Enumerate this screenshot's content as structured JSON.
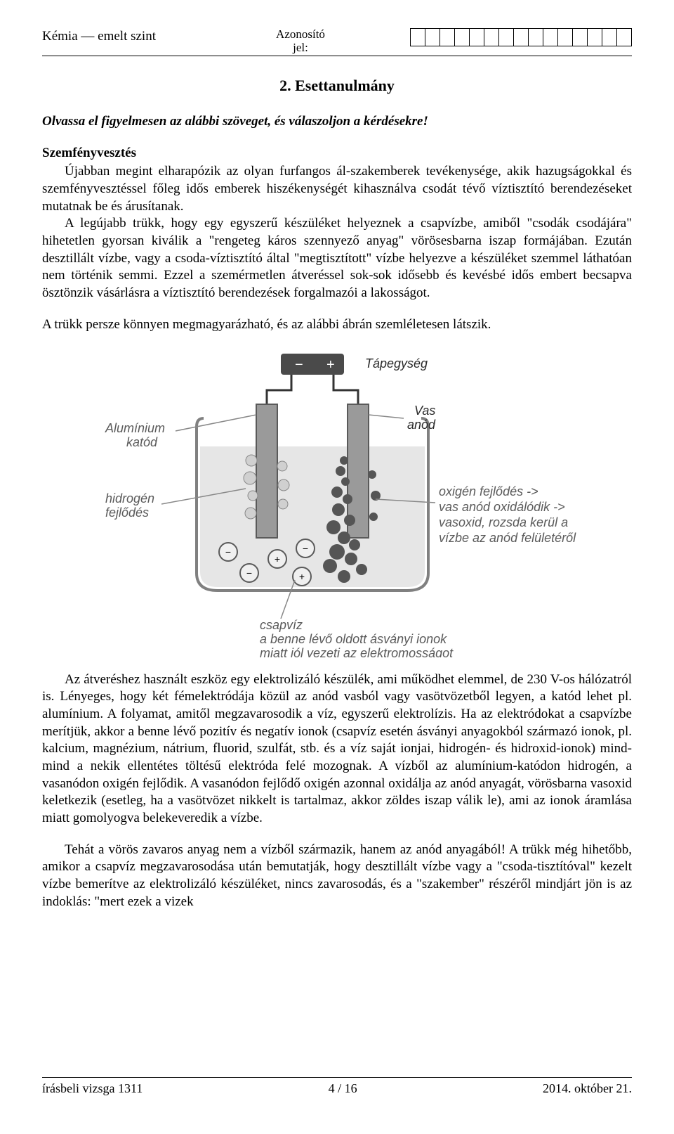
{
  "header": {
    "left": "Kémia — emelt szint",
    "mid1": "Azonosító",
    "mid2": "jel:",
    "idcell_count": 15
  },
  "section_title": "2. Esettanulmány",
  "intro": "Olvassa el figyelmesen az alábbi szöveget, és válaszoljon a kérdésekre!",
  "subhead": "Szemfényvesztés",
  "para1": "Újabban megint elharapózik az olyan furfangos ál-szakemberek tevékenysége, akik hazugságokkal és szemfényvesztéssel főleg idős emberek hiszékenységét kihasználva csodát tévő víztisztító berendezéseket mutatnak be és árusítanak.",
  "para2": "A legújabb trükk, hogy egy egyszerű készüléket helyeznek a csapvízbe, amiből \"csodák csodájára\" hihetetlen gyorsan kiválik a \"rengeteg káros szennyező anyag\" vörösesbarna iszap formájában. Ezután desztillált vízbe, vagy a csoda-víztisztító által \"megtisztított\" vízbe helyezve a készüléket szemmel láthatóan nem történik semmi. Ezzel a szemérmetlen átveréssel sok-sok idősebb és kevésbé idős embert becsapva ösztönzik vásárlásra a víztisztító berendezések forgalmazói a lakosságot.",
  "para3": "A trükk persze könnyen megmagyarázható, és az alábbi ábrán szemléletesen látszik.",
  "para4": "Az átveréshez használt eszköz egy elektrolizáló készülék, ami működhet elemmel, de 230 V-os hálózatról is. Lényeges, hogy két fémelektródája közül az anód vasból vagy vasötvözetből legyen, a katód lehet pl. alumínium. A folyamat, amitől megzavarosodik a víz, egyszerű elektrolízis. Ha az elektródokat a csapvízbe merítjük, akkor a benne lévő pozitív és negatív ionok (csapvíz esetén ásványi anyagokból származó ionok, pl. kalcium, magnézium, nátrium, fluorid, szulfát, stb. és a víz saját ionjai, hidrogén- és hidroxid-ionok) mind-mind a nekik ellentétes töltésű elektróda felé mozognak. A vízből az alumínium-katódon hidrogén, a vasanódon oxigén fejlődik. A vasanódon fejlődő oxigén azonnal oxidálja az anód anyagát, vörösbarna vasoxid keletkezik (esetleg, ha a vasötvözet nikkelt is tartalmaz, akkor zöldes iszap válik le), ami az ionok áramlása miatt gomolyogva belekeveredik a vízbe.",
  "para5": "Tehát a vörös zavaros anyag nem a vízből származik, hanem az anód anyagából! A trükk még hihetőbb, amikor a csapvíz megzavarosodása után bemutatják, hogy desztillált vízbe vagy a \"csoda-tisztítóval\" kezelt vízbe bemerítve az elektrolizáló készüléket, nincs zavarosodás, és a \"szakember\" részéről mindjárt jön is az indoklás: \"mert ezek a vizek",
  "figure": {
    "labels": {
      "power": "Tápegység",
      "al1": "Alumínium",
      "al2": "katód",
      "fe1": "Vas",
      "fe2": "anód",
      "h1": "hidrogén",
      "h2": "fejlődés",
      "o1": "oxigén fejlődés ->",
      "o2": "vas anód oxidálódik ->",
      "o3": "vasoxid, rozsda kerül a",
      "o4": "vízbe az anód felületéről",
      "w1": "csapvíz",
      "w2": "a benne lévő oldott ásványi ionok",
      "w3": "miatt jól vezeti az elektromosságot"
    },
    "colors": {
      "beaker_stroke": "#808080",
      "water_fill": "#e6e6e6",
      "electrode_fill": "#9a9a9a",
      "electrode_stroke": "#5a5a5a",
      "battery_fill": "#4a4a4a",
      "bubble_fill": "#d0d0d0",
      "precip_fill": "#555555",
      "ion_stroke": "#5a5a5a",
      "ion_fill": "#f0f0f0"
    }
  },
  "footer": {
    "left": "írásbeli vizsga 1311",
    "mid": "4 / 16",
    "right": "2014. október 21."
  }
}
